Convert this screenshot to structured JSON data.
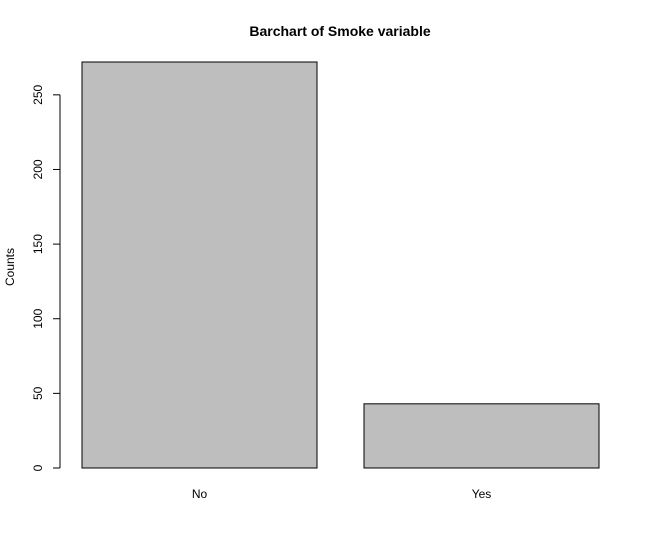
{
  "chart_data": {
    "type": "bar",
    "title": "Barchart of Smoke variable",
    "xlabel": "",
    "ylabel": "Counts",
    "categories": [
      "No",
      "Yes"
    ],
    "values": [
      272,
      43
    ],
    "ylim": [
      0,
      272
    ],
    "yticks": [
      0,
      50,
      100,
      150,
      200,
      250
    ],
    "ytick_labels": [
      "0",
      "50",
      "100",
      "150",
      "200",
      "250"
    ],
    "grid": false,
    "legend": "none",
    "colors": {
      "bar_fill": "#bebebe",
      "bar_stroke": "#000000",
      "axis": "#000000"
    }
  }
}
